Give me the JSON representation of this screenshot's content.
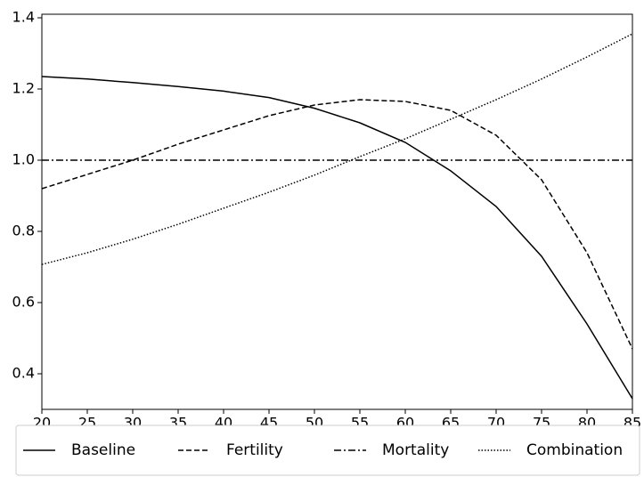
{
  "chart_data": {
    "type": "line",
    "x": [
      20,
      25,
      30,
      35,
      40,
      45,
      50,
      55,
      60,
      65,
      70,
      75,
      80,
      85
    ],
    "series": [
      {
        "name": "Baseline",
        "color": "#000000",
        "linestyle": "solid",
        "values": [
          1.235,
          1.228,
          1.218,
          1.207,
          1.194,
          1.176,
          1.146,
          1.105,
          1.05,
          0.97,
          0.87,
          0.73,
          0.54,
          0.33
        ]
      },
      {
        "name": "Fertility",
        "color": "#000000",
        "linestyle": "dashed",
        "values": [
          0.92,
          0.96,
          1.0,
          1.045,
          1.085,
          1.125,
          1.155,
          1.17,
          1.165,
          1.14,
          1.07,
          0.945,
          0.74,
          0.47
        ]
      },
      {
        "name": "Mortality",
        "color": "#000000",
        "linestyle": "dashdot",
        "values": [
          1.0,
          1.0,
          1.0,
          1.0,
          1.0,
          1.0,
          1.0,
          1.0,
          1.0,
          1.0,
          1.0,
          1.0,
          1.0,
          1.0
        ]
      },
      {
        "name": "Combination",
        "color": "#000000",
        "linestyle": "dotted",
        "values": [
          0.707,
          0.74,
          0.778,
          0.82,
          0.865,
          0.91,
          0.958,
          1.01,
          1.06,
          1.115,
          1.17,
          1.228,
          1.29,
          1.355
        ]
      }
    ],
    "xlim": [
      20,
      85
    ],
    "xticks": [
      20,
      25,
      30,
      35,
      40,
      45,
      50,
      55,
      60,
      65,
      70,
      75,
      80,
      85
    ],
    "ylim": [
      0.3,
      1.41
    ],
    "yticks": [
      0.4,
      0.6,
      0.8,
      {
        "value": 1,
        "label": "1.0"
      },
      1.2,
      1.4
    ],
    "grid": false,
    "legend": "bottom"
  }
}
